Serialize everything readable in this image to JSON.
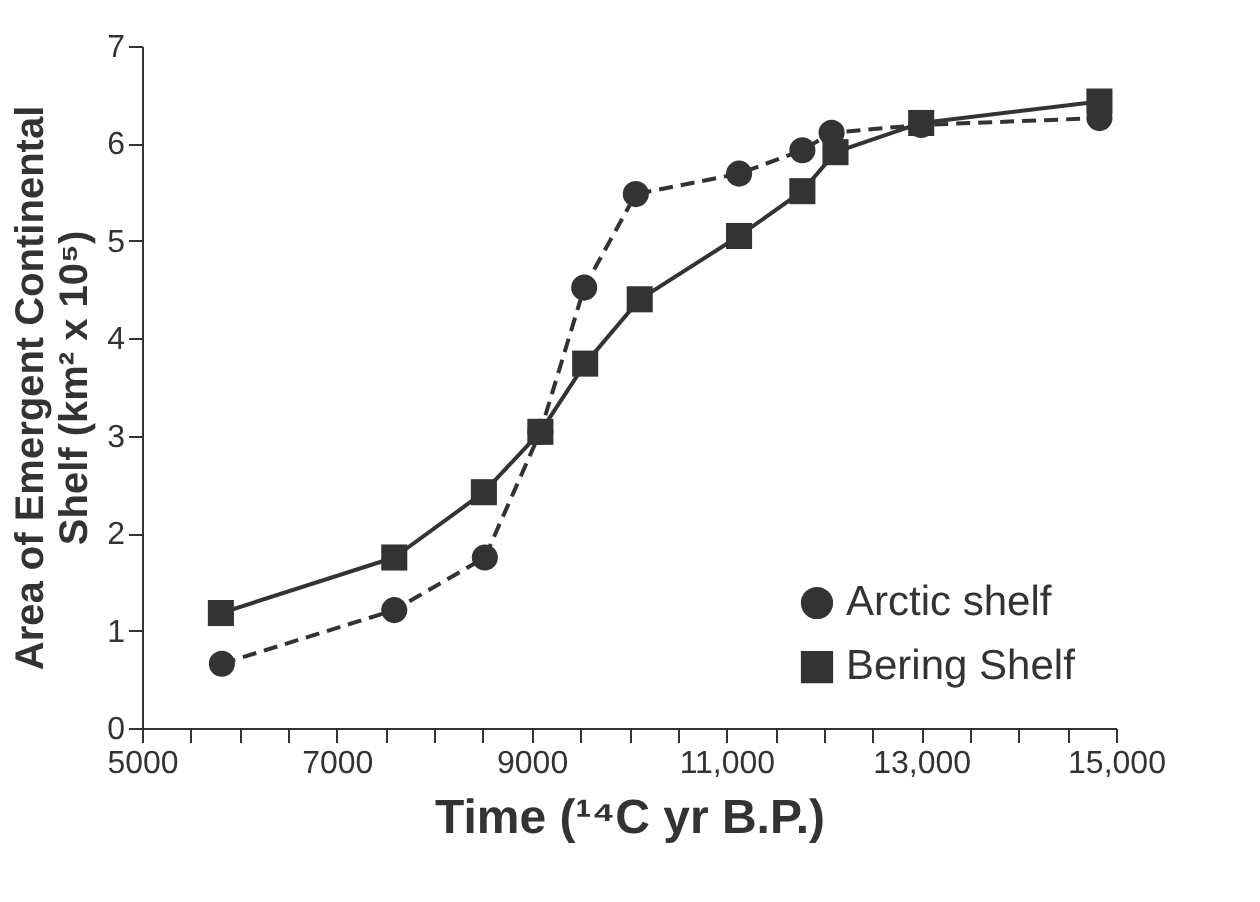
{
  "chart_data": {
    "type": "line",
    "xlabel": "Time (¹⁴C yr B.P.)",
    "ylabel": "Area of Emergent Continental Shelf (km² x 10⁵)",
    "xlim": [
      5000,
      15000
    ],
    "ylim": [
      0,
      7
    ],
    "xticks": [
      5000,
      {
        "value": 5500,
        "label": null
      },
      {
        "value": 6000,
        "label": null
      },
      {
        "value": 6500,
        "label": null
      },
      7000,
      {
        "value": 7500,
        "label": null
      },
      {
        "value": 8000,
        "label": null
      },
      {
        "value": 8500,
        "label": null
      },
      9000,
      {
        "value": 9500,
        "label": null
      },
      {
        "value": 10000,
        "label": null
      },
      {
        "value": 10500,
        "label": null
      },
      {
        "value": 11000,
        "label": "11,000"
      },
      {
        "value": 11500,
        "label": null
      },
      {
        "value": 12000,
        "label": null
      },
      {
        "value": 12500,
        "label": null
      },
      {
        "value": 13000,
        "label": "13,000"
      },
      {
        "value": 13500,
        "label": null
      },
      {
        "value": 14000,
        "label": null
      },
      {
        "value": 14500,
        "label": null
      },
      {
        "value": 15000,
        "label": "15,000"
      }
    ],
    "yticks": [
      0,
      1,
      2,
      3,
      4,
      5,
      6,
      7
    ],
    "grid": false,
    "legend": "bottom right",
    "series": [
      {
        "name": "Arctic shelf",
        "color": "#333333",
        "marker": "circle",
        "line_style": "dashed",
        "x": [
          5820,
          7590,
          8520,
          9090,
          9540,
          10070,
          11130,
          11780,
          12080,
          13000,
          14830
        ],
        "values": [
          0.66,
          1.21,
          1.75,
          3.04,
          4.52,
          5.48,
          5.69,
          5.93,
          6.11,
          6.19,
          6.26
        ]
      },
      {
        "name": "Bering Shelf",
        "color": "#333333",
        "marker": "square",
        "line_style": "solid",
        "x": [
          5810,
          7590,
          8510,
          9090,
          9550,
          10110,
          11130,
          11780,
          12120,
          13000,
          14830
        ],
        "values": [
          1.18,
          1.75,
          2.42,
          3.04,
          3.74,
          4.4,
          5.05,
          5.51,
          5.91,
          6.21,
          6.43
        ]
      }
    ]
  }
}
